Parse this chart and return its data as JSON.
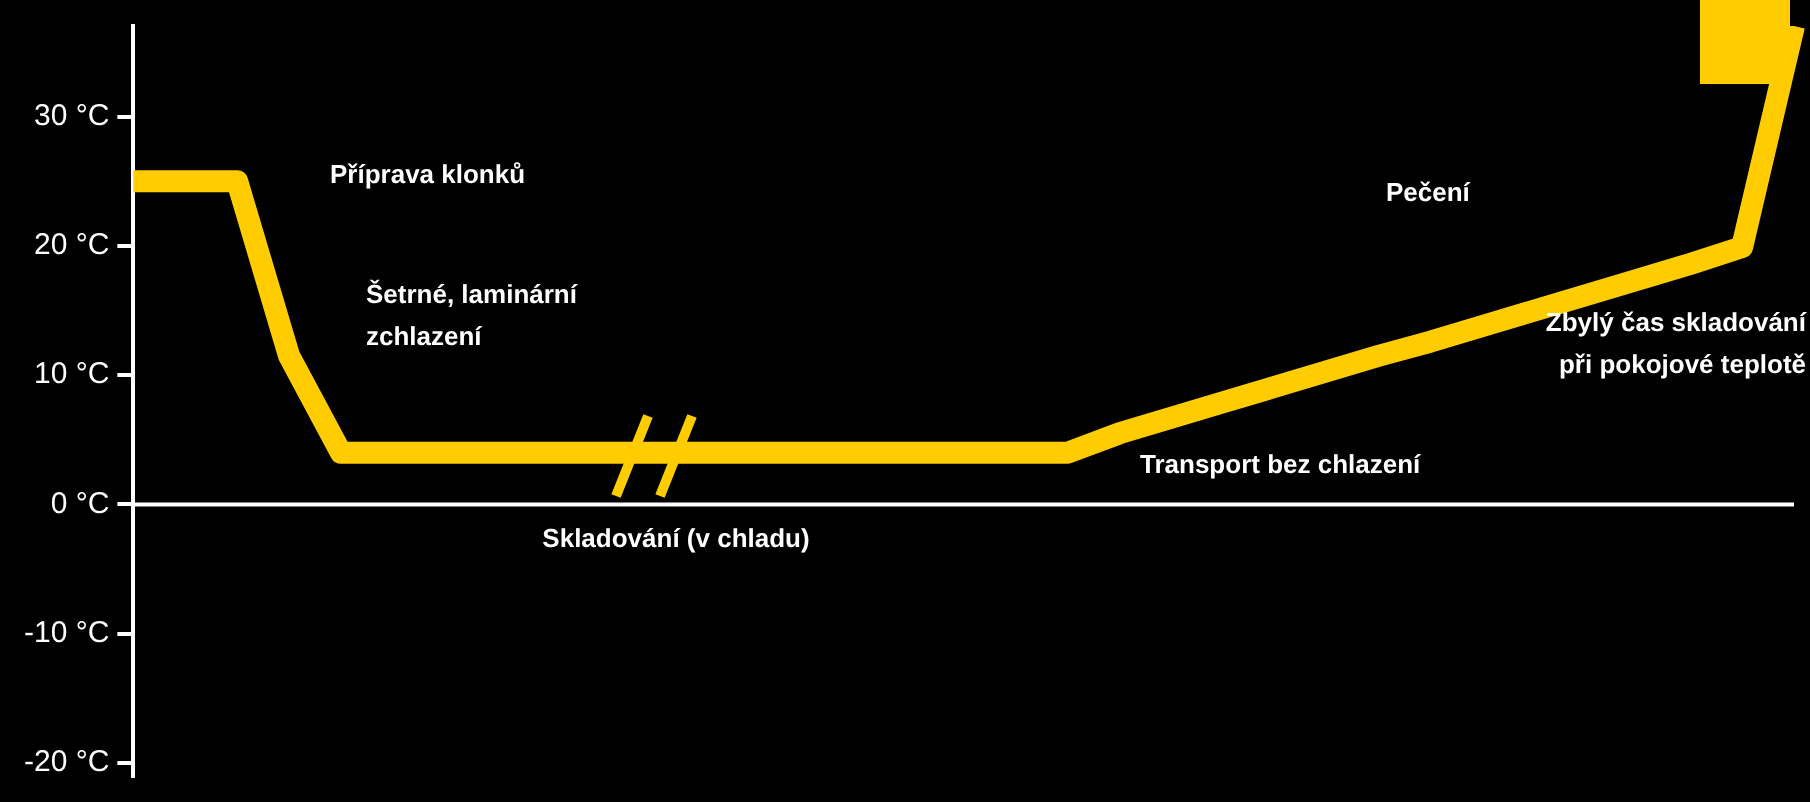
{
  "chart_data": {
    "type": "line",
    "categories": [
      null,
      null,
      null,
      null,
      null,
      null,
      null,
      null,
      null,
      null,
      null,
      null,
      null,
      null,
      null,
      null,
      null,
      null,
      null,
      null,
      null,
      null,
      null,
      null,
      null,
      null,
      null,
      null,
      null,
      null,
      null,
      null,
      null
    ],
    "series": [
      {
        "color": "#ffcc00",
        "values": [
          25,
          25,
          25,
          11.5,
          4,
          4,
          4,
          4,
          4,
          4,
          4,
          4,
          4,
          4,
          4,
          4,
          4,
          4,
          4,
          5.5,
          6.7,
          7.9,
          9.1,
          10.3,
          11.5,
          12.6,
          13.8,
          15,
          16.2,
          17.4,
          18.6,
          19.9,
          37
        ]
      }
    ],
    "ylim": [
      -21,
      37
    ],
    "yticks": [
      {
        "value": -20,
        "label": "-20 °C"
      },
      {
        "value": -10,
        "label": "-10 °C"
      },
      {
        "value": 0,
        "label": "0 °C"
      },
      {
        "value": 10,
        "label": "10 °C"
      },
      {
        "value": 20,
        "label": "20 °C"
      },
      {
        "value": 30,
        "label": "30 °C"
      }
    ],
    "ref_lines": [
      {
        "axis": "y",
        "value": 0,
        "color": "#ffffff"
      }
    ],
    "annotations": [
      "Příprava klonků",
      "Šetrné, laminární\nzchlazení",
      "Skladování (v chladu)",
      "Transport bez chlazení",
      "Pečení",
      "Zbylý čas skladování\npři pokojové teplotě"
    ],
    "tick_labels": "y",
    "grid": false,
    "legend": false,
    "marker": "none",
    "line_style": "solid"
  }
}
